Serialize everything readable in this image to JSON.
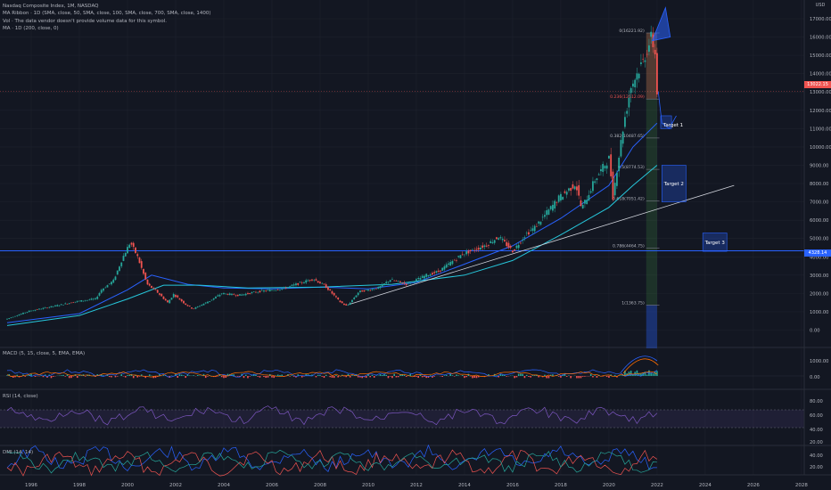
{
  "legend": {
    "title": "Nasdaq Composite Index, 1M, NASDAQ",
    "line1": "MA Ribbon · 1D (SMA, close, 50, SMA, close, 100, SMA, close, 700, SMA, close, 1400)",
    "line2": "Vol · The data vendor doesn't provide volume data for this symbol.",
    "line3": "MA · 1D (200, close, 0)"
  },
  "currency": "USD",
  "colors": {
    "background": "#131722",
    "grid": "#1e222d",
    "up": "#26a69a",
    "down": "#ef5350",
    "blue": "#2962ff",
    "teal": "#26c6da",
    "white_line": "#d1d4dc",
    "macd_line": "#2962ff",
    "signal_line": "#ff6d00",
    "rsi_line": "#7e57c2",
    "dmi_plus": "#2962ff",
    "dmi_minus": "#ef5350",
    "adx": "#26a69a"
  },
  "badges": {
    "last_price": "13022.15",
    "level": "4328.14"
  },
  "chart_data": {
    "type": "line",
    "title": "Nasdaq Composite Index, 1M, NASDAQ",
    "x_ticks": [
      "1996",
      "1998",
      "2000",
      "2002",
      "2004",
      "2006",
      "2008",
      "2010",
      "2012",
      "2014",
      "2016",
      "2018",
      "2020",
      "2022",
      "2024",
      "2026",
      "2028"
    ],
    "y_ticks": [
      "0.00",
      "1000.00",
      "2000.00",
      "3000.00",
      "4000.00",
      "5000.00",
      "6000.00",
      "7000.00",
      "8000.00",
      "9000.00",
      "10000.00",
      "11000.00",
      "12000.00",
      "13000.00",
      "14000.00",
      "15000.00",
      "16000.00",
      "17000.00"
    ],
    "ylim": [
      -1000,
      17800
    ],
    "xlim": [
      1995.0,
      2029.3
    ],
    "price": [
      [
        1995.0,
        580
      ],
      [
        1996.0,
        1040
      ],
      [
        1997.0,
        1300
      ],
      [
        1998.0,
        1570
      ],
      [
        1998.75,
        1700
      ],
      [
        1999.0,
        2200
      ],
      [
        1999.5,
        2700
      ],
      [
        1999.9,
        4000
      ],
      [
        2000.2,
        4800
      ],
      [
        2000.5,
        4000
      ],
      [
        2000.9,
        2500
      ],
      [
        2001.3,
        2100
      ],
      [
        2001.75,
        1500
      ],
      [
        2002.0,
        1950
      ],
      [
        2002.5,
        1400
      ],
      [
        2002.8,
        1150
      ],
      [
        2003.5,
        1600
      ],
      [
        2004.0,
        2000
      ],
      [
        2004.7,
        1900
      ],
      [
        2005.5,
        2100
      ],
      [
        2006.5,
        2250
      ],
      [
        2007.8,
        2800
      ],
      [
        2008.3,
        2400
      ],
      [
        2008.9,
        1550
      ],
      [
        2009.2,
        1300
      ],
      [
        2009.7,
        2100
      ],
      [
        2010.5,
        2300
      ],
      [
        2011.0,
        2750
      ],
      [
        2011.7,
        2500
      ],
      [
        2012.5,
        3000
      ],
      [
        2013.0,
        3200
      ],
      [
        2014.0,
        4150
      ],
      [
        2015.0,
        4650
      ],
      [
        2015.5,
        5100
      ],
      [
        2016.1,
        4300
      ],
      [
        2016.6,
        5200
      ],
      [
        2017.0,
        5600
      ],
      [
        2018.0,
        7200
      ],
      [
        2018.7,
        8000
      ],
      [
        2018.95,
        6600
      ],
      [
        2019.5,
        8200
      ],
      [
        2020.1,
        9400
      ],
      [
        2020.25,
        7300
      ],
      [
        2020.7,
        11300
      ],
      [
        2021.0,
        13300
      ],
      [
        2021.5,
        14700
      ],
      [
        2021.85,
        16000
      ],
      [
        2022.0,
        15100
      ],
      [
        2022.05,
        13022
      ]
    ],
    "moving_averages": [
      {
        "color": "blue",
        "points": [
          [
            1995.0,
            400
          ],
          [
            1998.0,
            900
          ],
          [
            2000.0,
            2200
          ],
          [
            2001.0,
            3000
          ],
          [
            2002.5,
            2500
          ],
          [
            2004.0,
            2300
          ],
          [
            2006.0,
            2250
          ],
          [
            2008.0,
            2350
          ],
          [
            2010.0,
            2250
          ],
          [
            2012.0,
            2600
          ],
          [
            2014.0,
            3600
          ],
          [
            2016.0,
            4600
          ],
          [
            2018.0,
            6100
          ],
          [
            2020.0,
            7900
          ],
          [
            2021.0,
            10000
          ],
          [
            2022.0,
            11300
          ]
        ]
      },
      {
        "color": "teal",
        "points": [
          [
            1995.0,
            250
          ],
          [
            1998.0,
            800
          ],
          [
            2000.0,
            1700
          ],
          [
            2001.5,
            2450
          ],
          [
            2003.0,
            2450
          ],
          [
            2005.0,
            2300
          ],
          [
            2008.0,
            2350
          ],
          [
            2011.0,
            2500
          ],
          [
            2014.0,
            3000
          ],
          [
            2016.0,
            3800
          ],
          [
            2018.0,
            5200
          ],
          [
            2020.0,
            6700
          ],
          [
            2021.0,
            7900
          ],
          [
            2022.0,
            9000
          ]
        ]
      }
    ],
    "trendline": [
      [
        2009.2,
        1400
      ],
      [
        2025.2,
        7900
      ]
    ],
    "horizontal_level": 4328.14,
    "fibonacci": {
      "labels": [
        "0(16221.92)",
        "0.236(12612.09)",
        "0.382(10487.65)",
        "0.5(8774.53)",
        "0.618(7051.42)",
        "0.786(4464.75)",
        "1(1363.75)"
      ],
      "values": [
        16221.92,
        12612.09,
        10487.65,
        8774.53,
        7051.42,
        4464.75,
        1363.75
      ]
    },
    "targets": [
      {
        "label": "Target 1",
        "value": 11200
      },
      {
        "label": "Target 2",
        "value": 8000
      },
      {
        "label": "Target 3",
        "value": 4800
      }
    ],
    "macd": {
      "title": "MACD (5, 15, close, 5, EMA, EMA)",
      "y_ticks": [
        "1000.00",
        "0.00"
      ]
    },
    "rsi": {
      "title": "RSI (14, close)",
      "y_ticks": [
        "80.00",
        "60.00",
        "40.00",
        "20.00"
      ]
    },
    "dmi": {
      "title": "DMI (14, 14)",
      "y_ticks": [
        "40.00",
        "20.00"
      ]
    }
  }
}
